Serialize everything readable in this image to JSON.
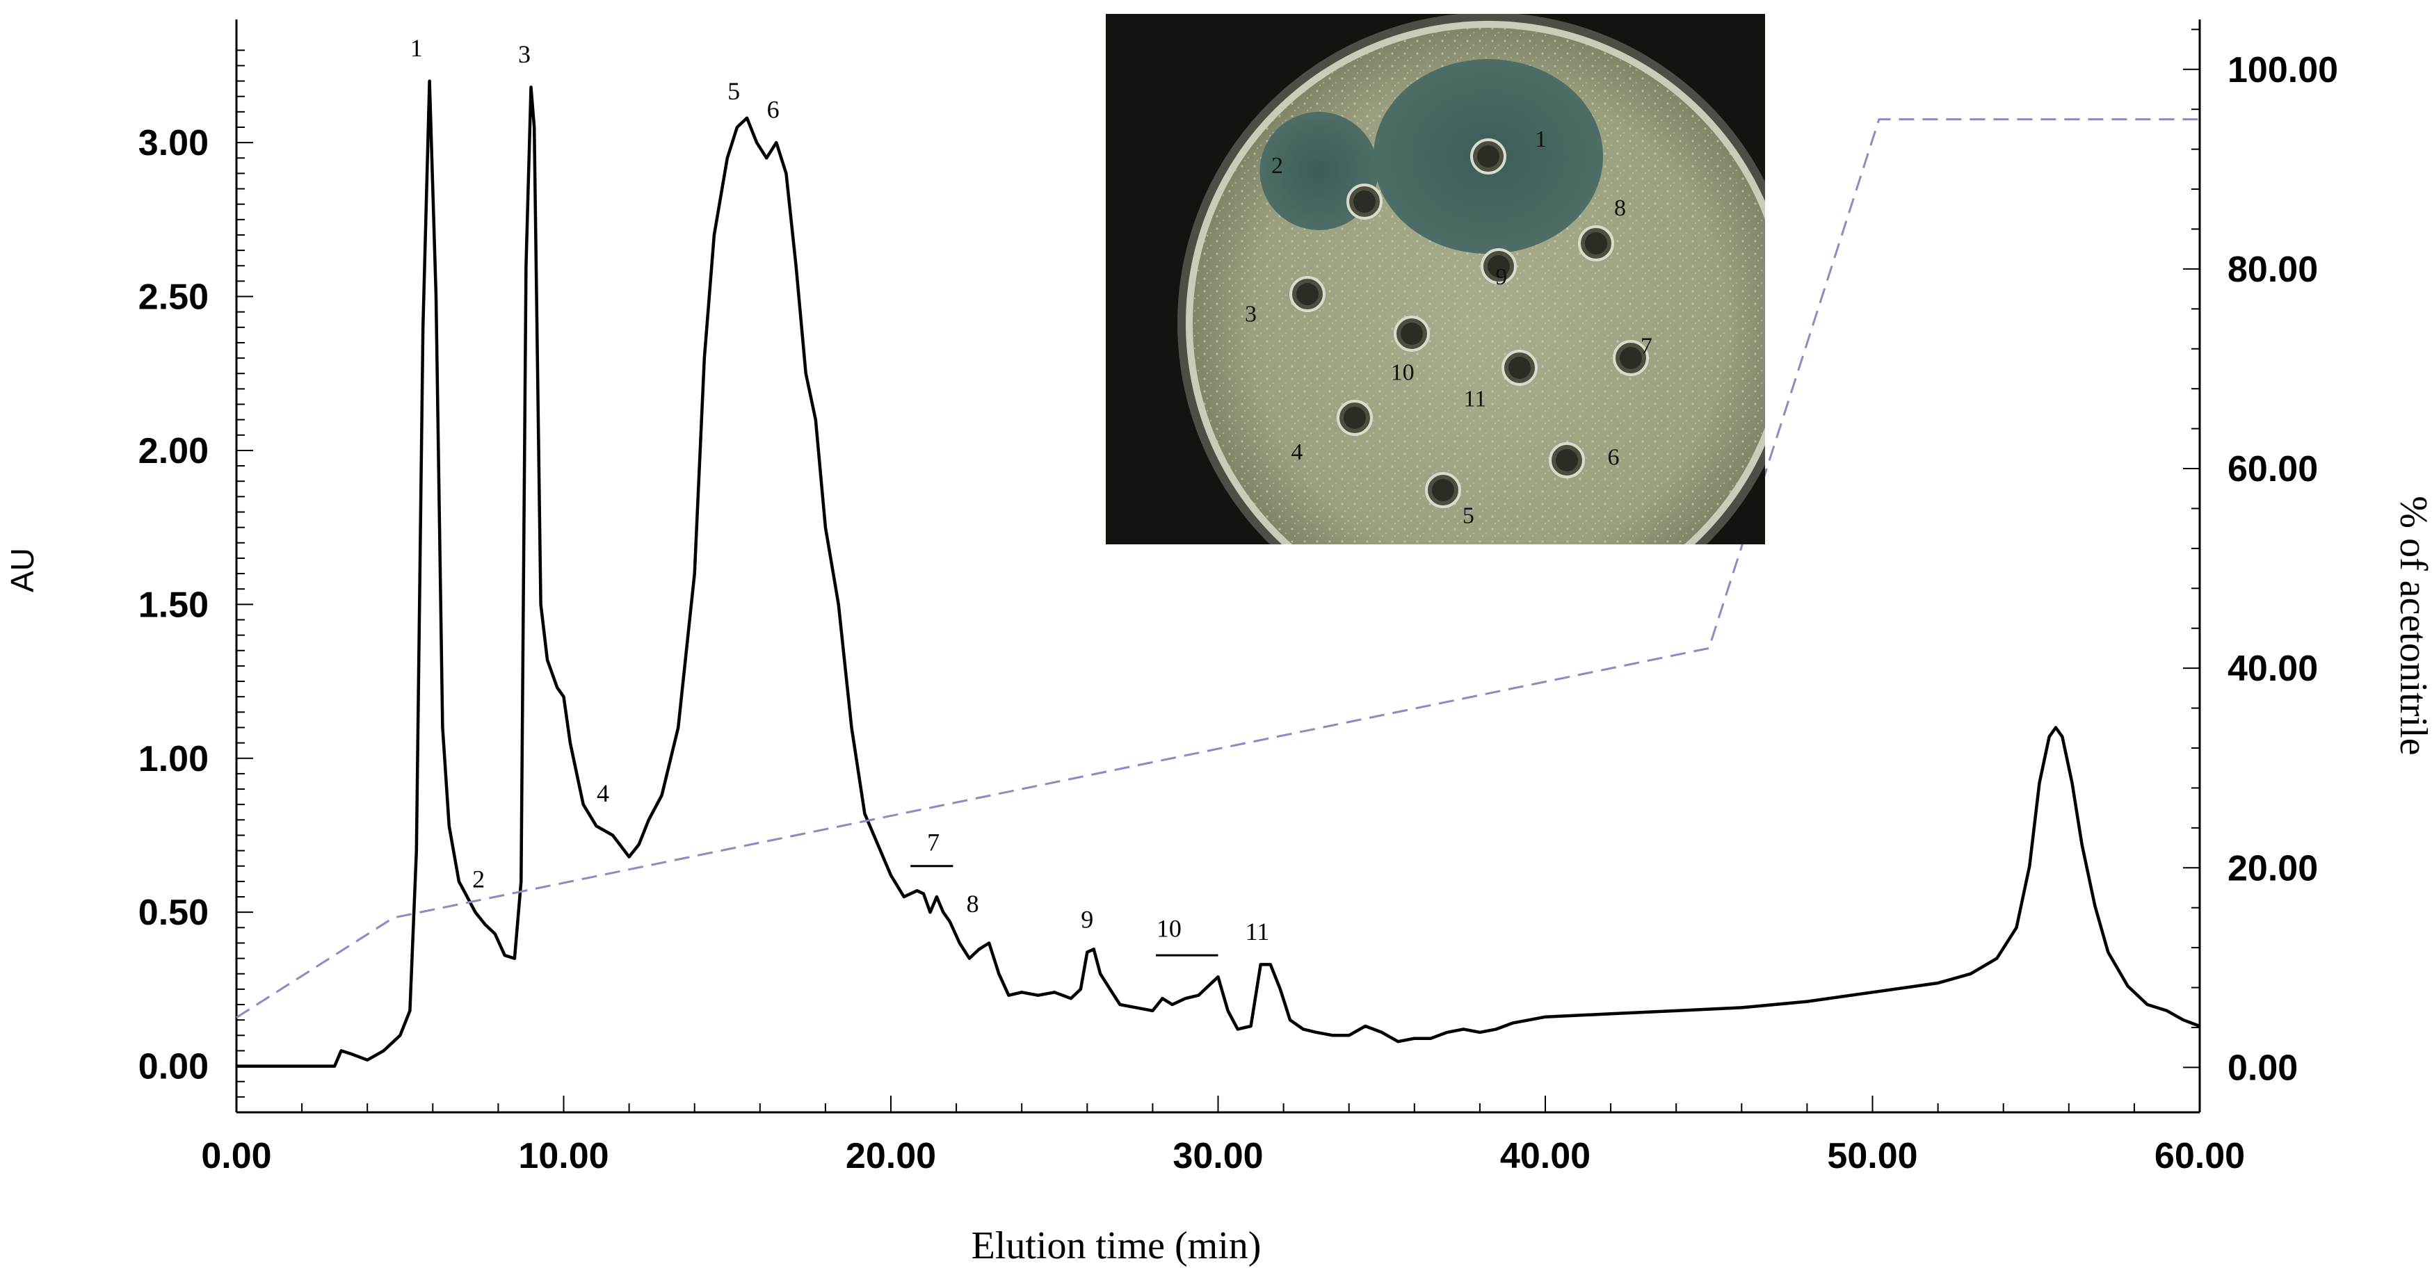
{
  "chart_data": {
    "type": "line",
    "xlabel": "Elution time (min)",
    "ylabel": "AU",
    "y2label": "% of acetonitrile",
    "xlim": [
      0,
      60
    ],
    "ylim": [
      -0.15,
      3.4
    ],
    "y2lim": [
      -4.5,
      105
    ],
    "x_ticks": [
      "0.00",
      "10.00",
      "20.00",
      "30.00",
      "40.00",
      "50.00",
      "60.00"
    ],
    "y_ticks": [
      "0.00",
      "0.50",
      "1.00",
      "1.50",
      "2.00",
      "2.50",
      "3.00"
    ],
    "y2_ticks": [
      "0.00",
      "20.00",
      "40.00",
      "60.00",
      "80.00",
      "100.00"
    ],
    "series": [
      {
        "style": "solid",
        "color": "#000000",
        "axis": "left",
        "x": [
          0,
          3.0,
          3.2,
          3.5,
          4.0,
          4.5,
          5.0,
          5.3,
          5.5,
          5.7,
          5.9,
          6.1,
          6.3,
          6.5,
          6.8,
          7.0,
          7.3,
          7.6,
          7.9,
          8.2,
          8.5,
          8.7,
          8.85,
          9.0,
          9.1,
          9.3,
          9.5,
          9.8,
          10.0,
          10.2,
          10.6,
          11.0,
          11.5,
          12.0,
          12.3,
          12.6,
          13.0,
          13.5,
          14.0,
          14.3,
          14.6,
          15.0,
          15.3,
          15.6,
          15.9,
          16.2,
          16.5,
          16.8,
          17.1,
          17.4,
          17.7,
          18.0,
          18.4,
          18.8,
          19.2,
          19.6,
          20.0,
          20.4,
          20.8,
          21.0,
          21.2,
          21.4,
          21.6,
          21.8,
          22.1,
          22.4,
          22.7,
          23.0,
          23.3,
          23.6,
          24.0,
          24.5,
          25.0,
          25.5,
          25.8,
          26.0,
          26.2,
          26.4,
          26.7,
          27.0,
          27.5,
          28.0,
          28.3,
          28.6,
          29.0,
          29.4,
          29.7,
          30.0,
          30.3,
          30.6,
          31.0,
          31.3,
          31.6,
          31.9,
          32.2,
          32.6,
          33.0,
          33.5,
          34.0,
          34.5,
          35.0,
          35.5,
          36.0,
          36.5,
          37.0,
          37.5,
          38.0,
          38.5,
          39.0,
          39.5,
          40.0,
          42.0,
          44.0,
          46.0,
          48.0,
          50.0,
          52.0,
          53.0,
          53.8,
          54.4,
          54.8,
          55.1,
          55.4,
          55.6,
          55.8,
          56.1,
          56.4,
          56.8,
          57.2,
          57.8,
          58.4,
          59.0,
          59.5,
          60.0
        ],
        "y": [
          0.0,
          0.0,
          0.05,
          0.04,
          0.02,
          0.05,
          0.1,
          0.18,
          0.7,
          2.4,
          3.2,
          2.5,
          1.1,
          0.78,
          0.6,
          0.56,
          0.5,
          0.46,
          0.43,
          0.36,
          0.35,
          0.6,
          2.6,
          3.18,
          3.05,
          1.5,
          1.32,
          1.23,
          1.2,
          1.05,
          0.85,
          0.78,
          0.75,
          0.68,
          0.72,
          0.8,
          0.88,
          1.1,
          1.6,
          2.3,
          2.7,
          2.95,
          3.05,
          3.08,
          3.0,
          2.95,
          3.0,
          2.9,
          2.6,
          2.25,
          2.1,
          1.75,
          1.5,
          1.1,
          0.82,
          0.72,
          0.62,
          0.55,
          0.57,
          0.56,
          0.5,
          0.55,
          0.5,
          0.47,
          0.4,
          0.35,
          0.38,
          0.4,
          0.3,
          0.23,
          0.24,
          0.23,
          0.24,
          0.22,
          0.25,
          0.37,
          0.38,
          0.3,
          0.25,
          0.2,
          0.19,
          0.18,
          0.22,
          0.2,
          0.22,
          0.23,
          0.26,
          0.29,
          0.18,
          0.12,
          0.13,
          0.33,
          0.33,
          0.25,
          0.15,
          0.12,
          0.11,
          0.1,
          0.1,
          0.13,
          0.11,
          0.08,
          0.09,
          0.09,
          0.11,
          0.12,
          0.11,
          0.12,
          0.14,
          0.15,
          0.16,
          0.17,
          0.18,
          0.19,
          0.21,
          0.24,
          0.27,
          0.3,
          0.35,
          0.45,
          0.65,
          0.92,
          1.07,
          1.1,
          1.07,
          0.92,
          0.72,
          0.52,
          0.37,
          0.26,
          0.2,
          0.18,
          0.15,
          0.13
        ]
      },
      {
        "style": "dashed",
        "color": "#8a8ac4",
        "axis": "right",
        "x": [
          0,
          4.8,
          45.0,
          50.2,
          60.0
        ],
        "y": [
          5,
          15,
          42,
          95,
          95
        ]
      }
    ],
    "annotations": [
      {
        "text": "1",
        "x": 5.5,
        "y": 3.28
      },
      {
        "text": "2",
        "x": 7.4,
        "y": 0.58
      },
      {
        "text": "3",
        "x": 8.8,
        "y": 3.26
      },
      {
        "text": "4",
        "x": 11.2,
        "y": 0.86
      },
      {
        "text": "5",
        "x": 15.2,
        "y": 3.14
      },
      {
        "text": "6",
        "x": 16.4,
        "y": 3.08
      },
      {
        "text": "7",
        "x": 21.3,
        "y": 0.7
      },
      {
        "text": "8",
        "x": 22.5,
        "y": 0.5
      },
      {
        "text": "9",
        "x": 26.0,
        "y": 0.45
      },
      {
        "text": "10",
        "x": 28.5,
        "y": 0.42
      },
      {
        "text": "11",
        "x": 31.2,
        "y": 0.41
      }
    ],
    "fraction_bars": [
      {
        "x1": 20.6,
        "x2": 21.9,
        "y": 0.65
      },
      {
        "x1": 28.1,
        "x2": 30.0,
        "y": 0.36
      }
    ],
    "inset": {
      "type": "photo",
      "subject": "petri dish agar well diffusion assay",
      "well_labels": [
        {
          "text": "1",
          "pos": [
            0.66,
            0.25
          ]
        },
        {
          "text": "2",
          "pos": [
            0.26,
            0.3
          ]
        },
        {
          "text": "3",
          "pos": [
            0.22,
            0.58
          ]
        },
        {
          "text": "4",
          "pos": [
            0.29,
            0.84
          ]
        },
        {
          "text": "5",
          "pos": [
            0.55,
            0.96
          ]
        },
        {
          "text": "6",
          "pos": [
            0.77,
            0.85
          ]
        },
        {
          "text": "7",
          "pos": [
            0.82,
            0.64
          ]
        },
        {
          "text": "8",
          "pos": [
            0.78,
            0.38
          ]
        },
        {
          "text": "9",
          "pos": [
            0.6,
            0.51
          ]
        },
        {
          "text": "10",
          "pos": [
            0.45,
            0.69
          ]
        },
        {
          "text": "11",
          "pos": [
            0.56,
            0.74
          ]
        }
      ]
    }
  }
}
